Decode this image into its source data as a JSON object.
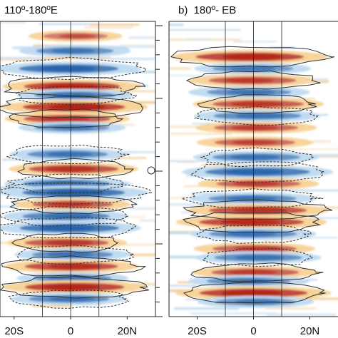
{
  "chart_data": [
    {
      "type": "heatmap",
      "title": "110º-180ºE",
      "panel_label": "",
      "title_prefix": "",
      "xlabel": "",
      "ylabel": "",
      "x_tick_labels": [
        "20S",
        "0",
        "20N"
      ],
      "x_ticks": [
        -20,
        0,
        20
      ],
      "xlim": [
        -25,
        30
      ],
      "reference_lines_x": [
        -10,
        0,
        10
      ],
      "colormap": {
        "negative": "#1f5fa8",
        "positive": "#b2200f",
        "neutral": "#ffffff"
      },
      "contours": {
        "positive_style": "solid",
        "negative_style": "dashed"
      },
      "bands": [
        {
          "y": 0.05,
          "sign": 1,
          "strength": 0.35
        },
        {
          "y": 0.1,
          "sign": -1,
          "strength": 0.55
        },
        {
          "y": 0.16,
          "sign": -1,
          "strength": 0.9
        },
        {
          "y": 0.22,
          "sign": 1,
          "strength": 0.85
        },
        {
          "y": 0.25,
          "sign": -1,
          "strength": 0.6
        },
        {
          "y": 0.29,
          "sign": 1,
          "strength": 0.95
        },
        {
          "y": 0.33,
          "sign": 1,
          "strength": 0.7
        },
        {
          "y": 0.36,
          "sign": -1,
          "strength": 0.5
        },
        {
          "y": 0.45,
          "sign": -1,
          "strength": 0.6
        },
        {
          "y": 0.5,
          "sign": 1,
          "strength": 0.75
        },
        {
          "y": 0.55,
          "sign": -1,
          "strength": 0.7
        },
        {
          "y": 0.58,
          "sign": -1,
          "strength": 0.95
        },
        {
          "y": 0.62,
          "sign": 1,
          "strength": 0.6
        },
        {
          "y": 0.66,
          "sign": -1,
          "strength": 0.7
        },
        {
          "y": 0.7,
          "sign": -1,
          "strength": 0.9
        },
        {
          "y": 0.75,
          "sign": 1,
          "strength": 0.65
        },
        {
          "y": 0.79,
          "sign": -1,
          "strength": 0.6
        },
        {
          "y": 0.83,
          "sign": 1,
          "strength": 0.8
        },
        {
          "y": 0.87,
          "sign": -1,
          "strength": 0.55
        },
        {
          "y": 0.9,
          "sign": 1,
          "strength": 0.9
        },
        {
          "y": 0.94,
          "sign": -1,
          "strength": 0.6
        }
      ]
    },
    {
      "type": "heatmap",
      "title": "180º- EB",
      "panel_label": "b)",
      "xlabel": "",
      "ylabel": "",
      "x_tick_labels": [
        "20S",
        "0",
        "20N"
      ],
      "x_ticks": [
        -20,
        0,
        20
      ],
      "xlim": [
        -30,
        30
      ],
      "reference_lines_x": [
        -10,
        0,
        10
      ],
      "colormap": {
        "negative": "#1f5fa8",
        "positive": "#b2200f",
        "neutral": "#ffffff"
      },
      "contours": {
        "positive_style": "solid",
        "negative_style": "dashed"
      },
      "bands": [
        {
          "y": 0.12,
          "sign": 1,
          "strength": 0.9
        },
        {
          "y": 0.16,
          "sign": -1,
          "strength": 0.5
        },
        {
          "y": 0.2,
          "sign": 1,
          "strength": 0.6
        },
        {
          "y": 0.24,
          "sign": -1,
          "strength": 0.55
        },
        {
          "y": 0.28,
          "sign": 1,
          "strength": 0.65
        },
        {
          "y": 0.32,
          "sign": -1,
          "strength": 0.6
        },
        {
          "y": 0.36,
          "sign": 1,
          "strength": 0.55
        },
        {
          "y": 0.41,
          "sign": 1,
          "strength": 0.5
        },
        {
          "y": 0.46,
          "sign": -1,
          "strength": 0.6
        },
        {
          "y": 0.51,
          "sign": -1,
          "strength": 0.85
        },
        {
          "y": 0.55,
          "sign": 1,
          "strength": 0.55
        },
        {
          "y": 0.6,
          "sign": -1,
          "strength": 0.6
        },
        {
          "y": 0.64,
          "sign": 1,
          "strength": 0.75
        },
        {
          "y": 0.68,
          "sign": 1,
          "strength": 0.85
        },
        {
          "y": 0.72,
          "sign": -1,
          "strength": 0.6
        },
        {
          "y": 0.77,
          "sign": 1,
          "strength": 0.55
        },
        {
          "y": 0.8,
          "sign": -1,
          "strength": 0.6
        },
        {
          "y": 0.85,
          "sign": 1,
          "strength": 0.6
        },
        {
          "y": 0.88,
          "sign": -1,
          "strength": 0.55
        },
        {
          "y": 0.92,
          "sign": 1,
          "strength": 0.9
        },
        {
          "y": 0.95,
          "sign": -1,
          "strength": 0.5
        }
      ]
    }
  ]
}
